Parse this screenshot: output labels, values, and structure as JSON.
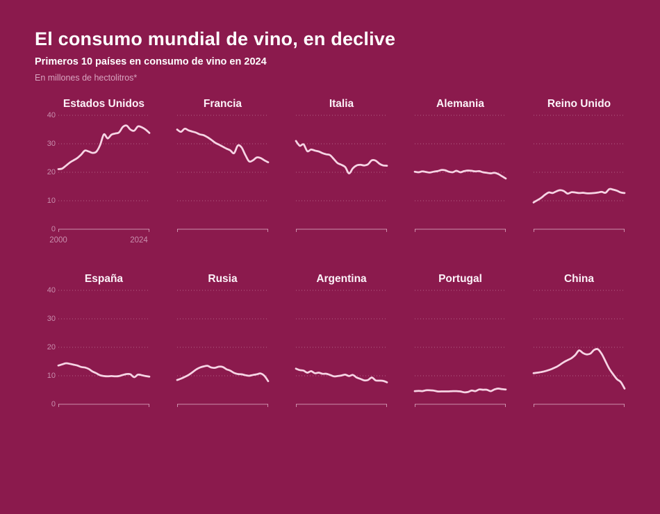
{
  "header": {
    "title": "El consumo mundial de vino, en declive",
    "subtitle": "Primeros 10 países en consumo de vino en 2024",
    "unit_note": "En millones de hectolitros*"
  },
  "colors": {
    "background": "#8B1A4D",
    "line": "#F6D4E4",
    "grid_dotted": "rgba(246,214,229,0.38)",
    "zero_axis": "rgba(246,214,229,0.62)",
    "axis_text": "#C98FAE",
    "title_text": "#FFFFFF",
    "chart_title_text": "#FCF2F8",
    "unit_text": "#D8A5C0"
  },
  "chart_data": {
    "type": "line",
    "layout": "small-multiples, 5 columns x 2 rows",
    "title": "El consumo mundial de vino, en declive",
    "subtitle": "Primeros 10 países en consumo de vino en 2024",
    "unit": "millones de hectolitros",
    "grid": "dotted horizontal gridlines at 10,20,30,40; solid baseline at 0",
    "legend_position": "none",
    "ylim": [
      0,
      40
    ],
    "y_ticks": [
      40,
      30,
      20,
      10,
      0
    ],
    "x_tick_labels": [
      "2000",
      "2024"
    ],
    "x": [
      2000,
      2001,
      2002,
      2003,
      2004,
      2005,
      2006,
      2007,
      2008,
      2009,
      2010,
      2011,
      2012,
      2013,
      2014,
      2015,
      2016,
      2017,
      2018,
      2019,
      2020,
      2021,
      2022,
      2023,
      2024
    ],
    "series": [
      {
        "id": "estados-unidos",
        "name": "Estados Unidos",
        "values": [
          21.1,
          21.3,
          22.3,
          23.4,
          24.2,
          25.0,
          26.2,
          27.6,
          27.3,
          26.8,
          27.2,
          29.5,
          33.3,
          31.9,
          33.2,
          33.6,
          34.0,
          35.9,
          36.4,
          35.0,
          34.6,
          36.1,
          35.8,
          35.0,
          33.8
        ]
      },
      {
        "id": "francia",
        "name": "Francia",
        "values": [
          35.0,
          34.2,
          35.3,
          34.7,
          34.3,
          33.9,
          33.3,
          33.0,
          32.3,
          31.4,
          30.4,
          29.7,
          29.0,
          28.3,
          27.7,
          26.7,
          29.4,
          28.7,
          26.0,
          23.8,
          24.2,
          25.2,
          25.0,
          24.2,
          23.5
        ]
      },
      {
        "id": "italia",
        "name": "Italia",
        "values": [
          31.0,
          29.3,
          29.8,
          27.4,
          28.0,
          27.6,
          27.3,
          26.7,
          26.3,
          26.0,
          24.6,
          23.2,
          22.6,
          21.8,
          19.6,
          21.4,
          22.4,
          22.6,
          22.4,
          22.8,
          24.2,
          24.1,
          23.0,
          22.4,
          22.3
        ]
      },
      {
        "id": "alemania",
        "name": "Alemania",
        "values": [
          20.2,
          20.0,
          20.3,
          20.1,
          19.9,
          20.2,
          20.4,
          20.8,
          20.7,
          20.2,
          20.0,
          20.5,
          20.0,
          20.4,
          20.6,
          20.5,
          20.3,
          20.4,
          20.0,
          19.8,
          19.6,
          19.8,
          19.4,
          18.6,
          17.8
        ]
      },
      {
        "id": "reino-unido",
        "name": "Reino Unido",
        "values": [
          9.4,
          10.2,
          11.0,
          12.1,
          12.9,
          12.7,
          13.3,
          13.7,
          13.4,
          12.5,
          13.0,
          12.9,
          12.7,
          12.8,
          12.6,
          12.6,
          12.7,
          12.9,
          13.1,
          12.8,
          14.1,
          13.9,
          13.5,
          12.9,
          12.7
        ]
      },
      {
        "id": "espana",
        "name": "España",
        "values": [
          13.6,
          14.0,
          14.4,
          14.2,
          13.9,
          13.6,
          13.1,
          12.9,
          12.4,
          11.5,
          10.9,
          10.2,
          9.9,
          9.8,
          9.9,
          9.8,
          9.9,
          10.3,
          10.6,
          10.5,
          9.5,
          10.4,
          10.2,
          9.9,
          9.7
        ]
      },
      {
        "id": "rusia",
        "name": "Rusia",
        "values": [
          8.5,
          9.0,
          9.6,
          10.3,
          11.2,
          12.2,
          12.9,
          13.3,
          13.5,
          12.9,
          12.8,
          13.2,
          13.1,
          12.3,
          11.8,
          11.0,
          10.6,
          10.5,
          10.2,
          10.0,
          10.3,
          10.5,
          10.8,
          10.0,
          8.1
        ]
      },
      {
        "id": "argentina",
        "name": "Argentina",
        "values": [
          12.5,
          12.0,
          11.8,
          11.1,
          11.6,
          10.9,
          11.1,
          10.7,
          10.7,
          10.3,
          9.8,
          9.9,
          10.1,
          10.4,
          9.9,
          10.3,
          9.4,
          8.9,
          8.4,
          8.5,
          9.4,
          8.4,
          8.3,
          8.2,
          7.7
        ]
      },
      {
        "id": "portugal",
        "name": "Portugal",
        "values": [
          4.6,
          4.7,
          4.6,
          4.9,
          4.9,
          4.8,
          4.5,
          4.5,
          4.5,
          4.5,
          4.6,
          4.6,
          4.5,
          4.2,
          4.3,
          4.8,
          4.6,
          5.2,
          5.1,
          5.1,
          4.6,
          5.2,
          5.5,
          5.3,
          5.2
        ]
      },
      {
        "id": "china",
        "name": "China",
        "values": [
          10.9,
          11.1,
          11.3,
          11.6,
          12.0,
          12.5,
          13.1,
          13.9,
          14.8,
          15.5,
          16.2,
          17.3,
          18.9,
          18.0,
          17.5,
          17.8,
          19.1,
          19.3,
          17.6,
          15.0,
          12.4,
          10.5,
          8.8,
          7.8,
          5.5
        ]
      }
    ]
  }
}
